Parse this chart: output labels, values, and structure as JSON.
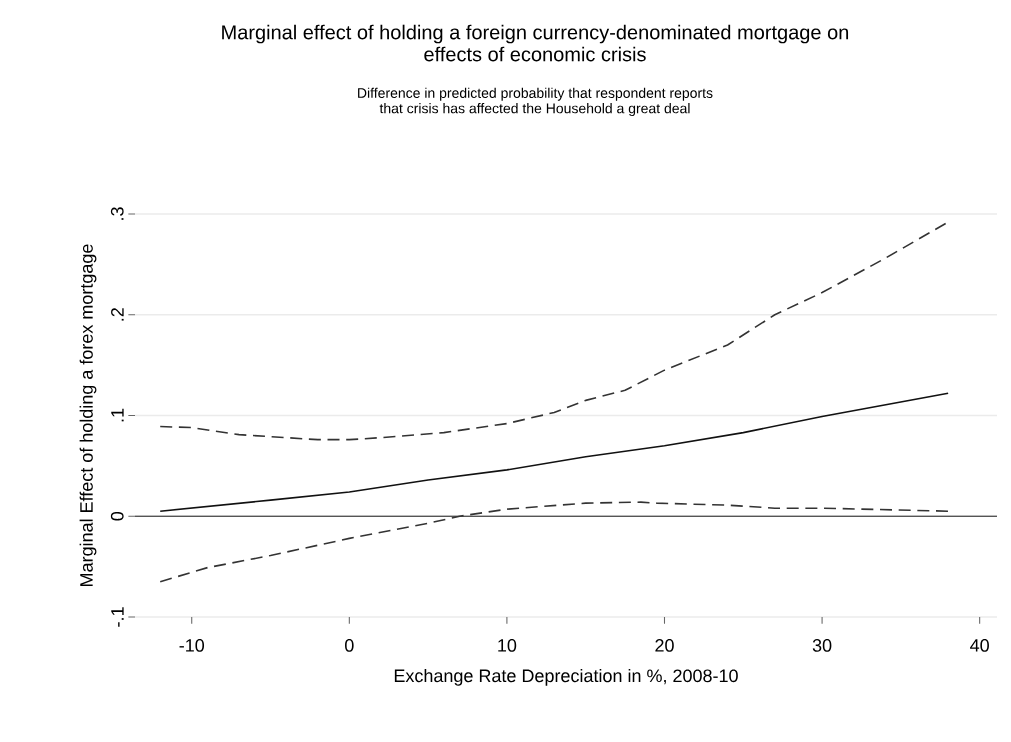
{
  "chart_data": {
    "type": "line",
    "title": "Marginal effect of holding a foreign currency-denominated mortgage on effects of economic crisis",
    "subtitle": "Difference in predicted probability that respondent reports that crisis has affected the Household a great deal",
    "xlabel": "Exchange Rate Depreciation in %, 2008-10",
    "ylabel": "Marginal Effect of holding a forex mortgage",
    "xlim": [
      -13.6,
      41.1
    ],
    "ylim": [
      -0.1,
      0.3
    ],
    "xticks": [
      -10,
      0,
      10,
      20,
      30,
      40
    ],
    "yticks": [
      {
        "value": -0.1,
        "label": "-.1"
      },
      0,
      {
        "value": 0.1,
        "label": ".1"
      },
      {
        "value": 0.2,
        "label": ".2"
      },
      {
        "value": 0.3,
        "label": ".3"
      }
    ],
    "grid": "y",
    "marker": "none",
    "ref_lines": [
      {
        "axis": "y",
        "value": 0,
        "color": "#555555"
      }
    ],
    "series": [
      {
        "color": "#111111",
        "line_style": "solid",
        "x": [
          -12,
          -5,
          0,
          5,
          10,
          15,
          20,
          25,
          30,
          38
        ],
        "values": [
          0.005,
          0.016,
          0.024,
          0.036,
          0.046,
          0.059,
          0.07,
          0.083,
          0.099,
          0.122
        ]
      },
      {
        "color": "#333333",
        "line_style": "dashed",
        "x": [
          -12,
          -10,
          -7,
          -2,
          0,
          2,
          6,
          10,
          13,
          15,
          17.5,
          20,
          24,
          27,
          30,
          34,
          38
        ],
        "values": [
          0.089,
          0.088,
          0.081,
          0.076,
          0.076,
          0.078,
          0.083,
          0.092,
          0.103,
          0.115,
          0.125,
          0.145,
          0.17,
          0.2,
          0.222,
          0.256,
          0.292
        ]
      },
      {
        "color": "#333333",
        "line_style": "dashed",
        "x": [
          -12,
          -9,
          -5,
          0,
          5,
          7,
          10,
          15,
          18.5,
          19.5,
          24,
          27,
          30,
          38
        ],
        "values": [
          -0.065,
          -0.051,
          -0.039,
          -0.022,
          -0.007,
          0,
          0.007,
          0.013,
          0.014,
          0.013,
          0.011,
          0.008,
          0.008,
          0.005
        ]
      }
    ]
  }
}
